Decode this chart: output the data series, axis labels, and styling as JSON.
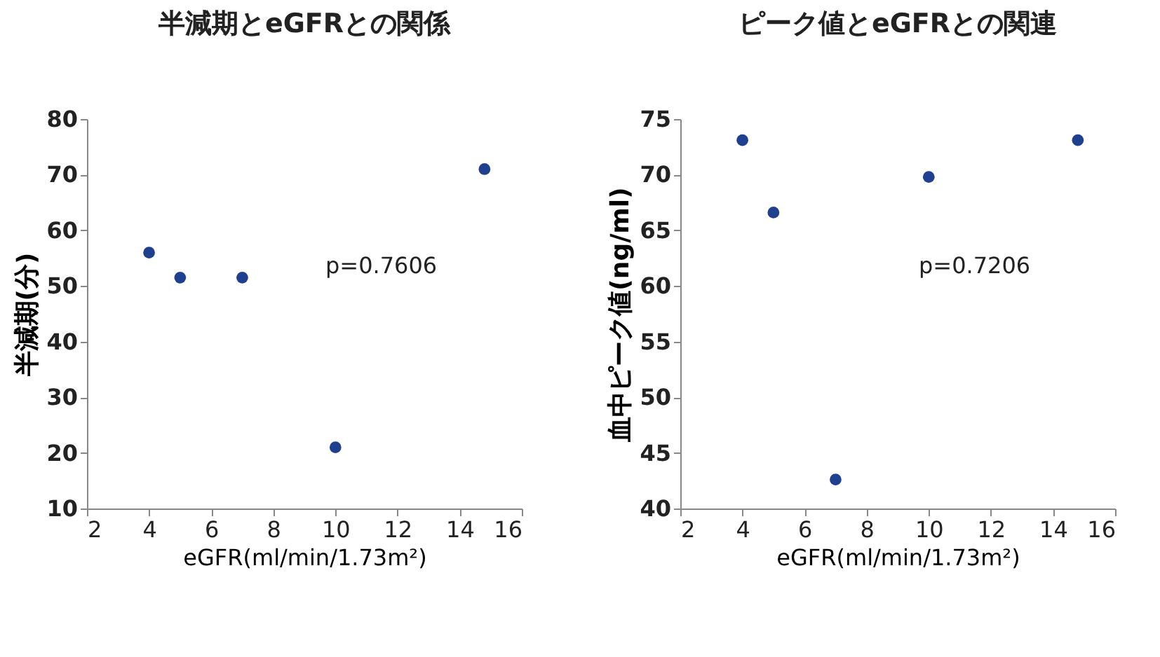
{
  "chart_data": [
    {
      "type": "scatter",
      "title": "半減期とeGFRとの関係",
      "xlabel": "eGFR(ml/min/1.73m²)",
      "ylabel": "半減期(分)",
      "x": [
        4,
        5,
        7,
        10,
        14.8
      ],
      "series": [
        {
          "color": "#1f3f8f",
          "values": [
            56,
            51.5,
            51.5,
            21,
            71
          ]
        }
      ],
      "xlim": [
        2,
        16
      ],
      "xticks": [
        2,
        4,
        6,
        8,
        10,
        12,
        14,
        16
      ],
      "ylim": [
        10,
        80
      ],
      "yticks": [
        10,
        20,
        30,
        40,
        50,
        60,
        70,
        80
      ],
      "annotations": [
        "p=0.7606"
      ],
      "marker": "circle",
      "grid": false,
      "legend": false
    },
    {
      "type": "scatter",
      "title": "ピーク値とeGFRとの関連",
      "xlabel": "eGFR(ml/min/1.73m²)",
      "ylabel": "血中ピーク値(ng/ml)",
      "x": [
        4,
        5,
        7,
        10,
        14.8
      ],
      "series": [
        {
          "color": "#1f3f8f",
          "values": [
            73.1,
            66.6,
            42.6,
            69.8,
            73.1
          ]
        }
      ],
      "xlim": [
        2,
        16
      ],
      "xticks": [
        2,
        4,
        6,
        8,
        10,
        12,
        14,
        16
      ],
      "ylim": [
        40,
        75
      ],
      "yticks": [
        40,
        45,
        50,
        55,
        60,
        65,
        70,
        75
      ],
      "annotations": [
        "p=0.7206"
      ],
      "marker": "circle",
      "grid": false,
      "legend": false
    }
  ]
}
